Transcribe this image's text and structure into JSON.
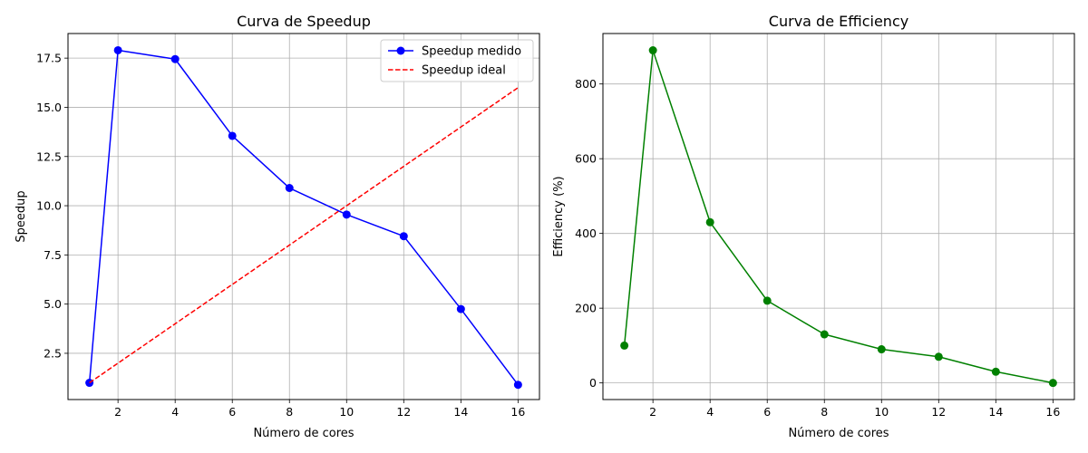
{
  "chart_data": [
    {
      "type": "line",
      "title": "Curva de Speedup",
      "xlabel": "Número de cores",
      "ylabel": "Speedup",
      "xlim": [
        0.25,
        16.75
      ],
      "ylim": [
        0.15,
        18.75
      ],
      "x_ticks": [
        2,
        4,
        6,
        8,
        10,
        12,
        14,
        16
      ],
      "y_ticks": [
        2.5,
        5.0,
        7.5,
        10.0,
        12.5,
        15.0,
        17.5
      ],
      "grid": true,
      "legend_position": "top-right",
      "series": [
        {
          "name": "Speedup medido",
          "color": "#0000ff",
          "style": "solid",
          "marker": "circle",
          "x": [
            1,
            2,
            4,
            6,
            8,
            10,
            12,
            14,
            16
          ],
          "y": [
            1.0,
            17.9,
            17.45,
            13.55,
            10.9,
            9.55,
            8.45,
            4.75,
            0.9
          ]
        },
        {
          "name": "Speedup ideal",
          "color": "#ff0000",
          "style": "dashed",
          "marker": "none",
          "x": [
            1,
            16
          ],
          "y": [
            1,
            16
          ]
        }
      ]
    },
    {
      "type": "line",
      "title": "Curva de Efficiency",
      "xlabel": "Número de cores",
      "ylabel": "Efficiency (%)",
      "xlim": [
        0.25,
        16.75
      ],
      "ylim": [
        -44.5,
        935
      ],
      "x_ticks": [
        2,
        4,
        6,
        8,
        10,
        12,
        14,
        16
      ],
      "y_ticks": [
        0,
        200,
        400,
        600,
        800
      ],
      "grid": true,
      "series": [
        {
          "color": "#008000",
          "style": "solid",
          "marker": "circle",
          "x": [
            1,
            2,
            4,
            6,
            8,
            10,
            12,
            14,
            16
          ],
          "y": [
            100,
            890,
            430,
            220,
            130,
            90,
            70,
            30,
            0
          ]
        }
      ]
    }
  ]
}
